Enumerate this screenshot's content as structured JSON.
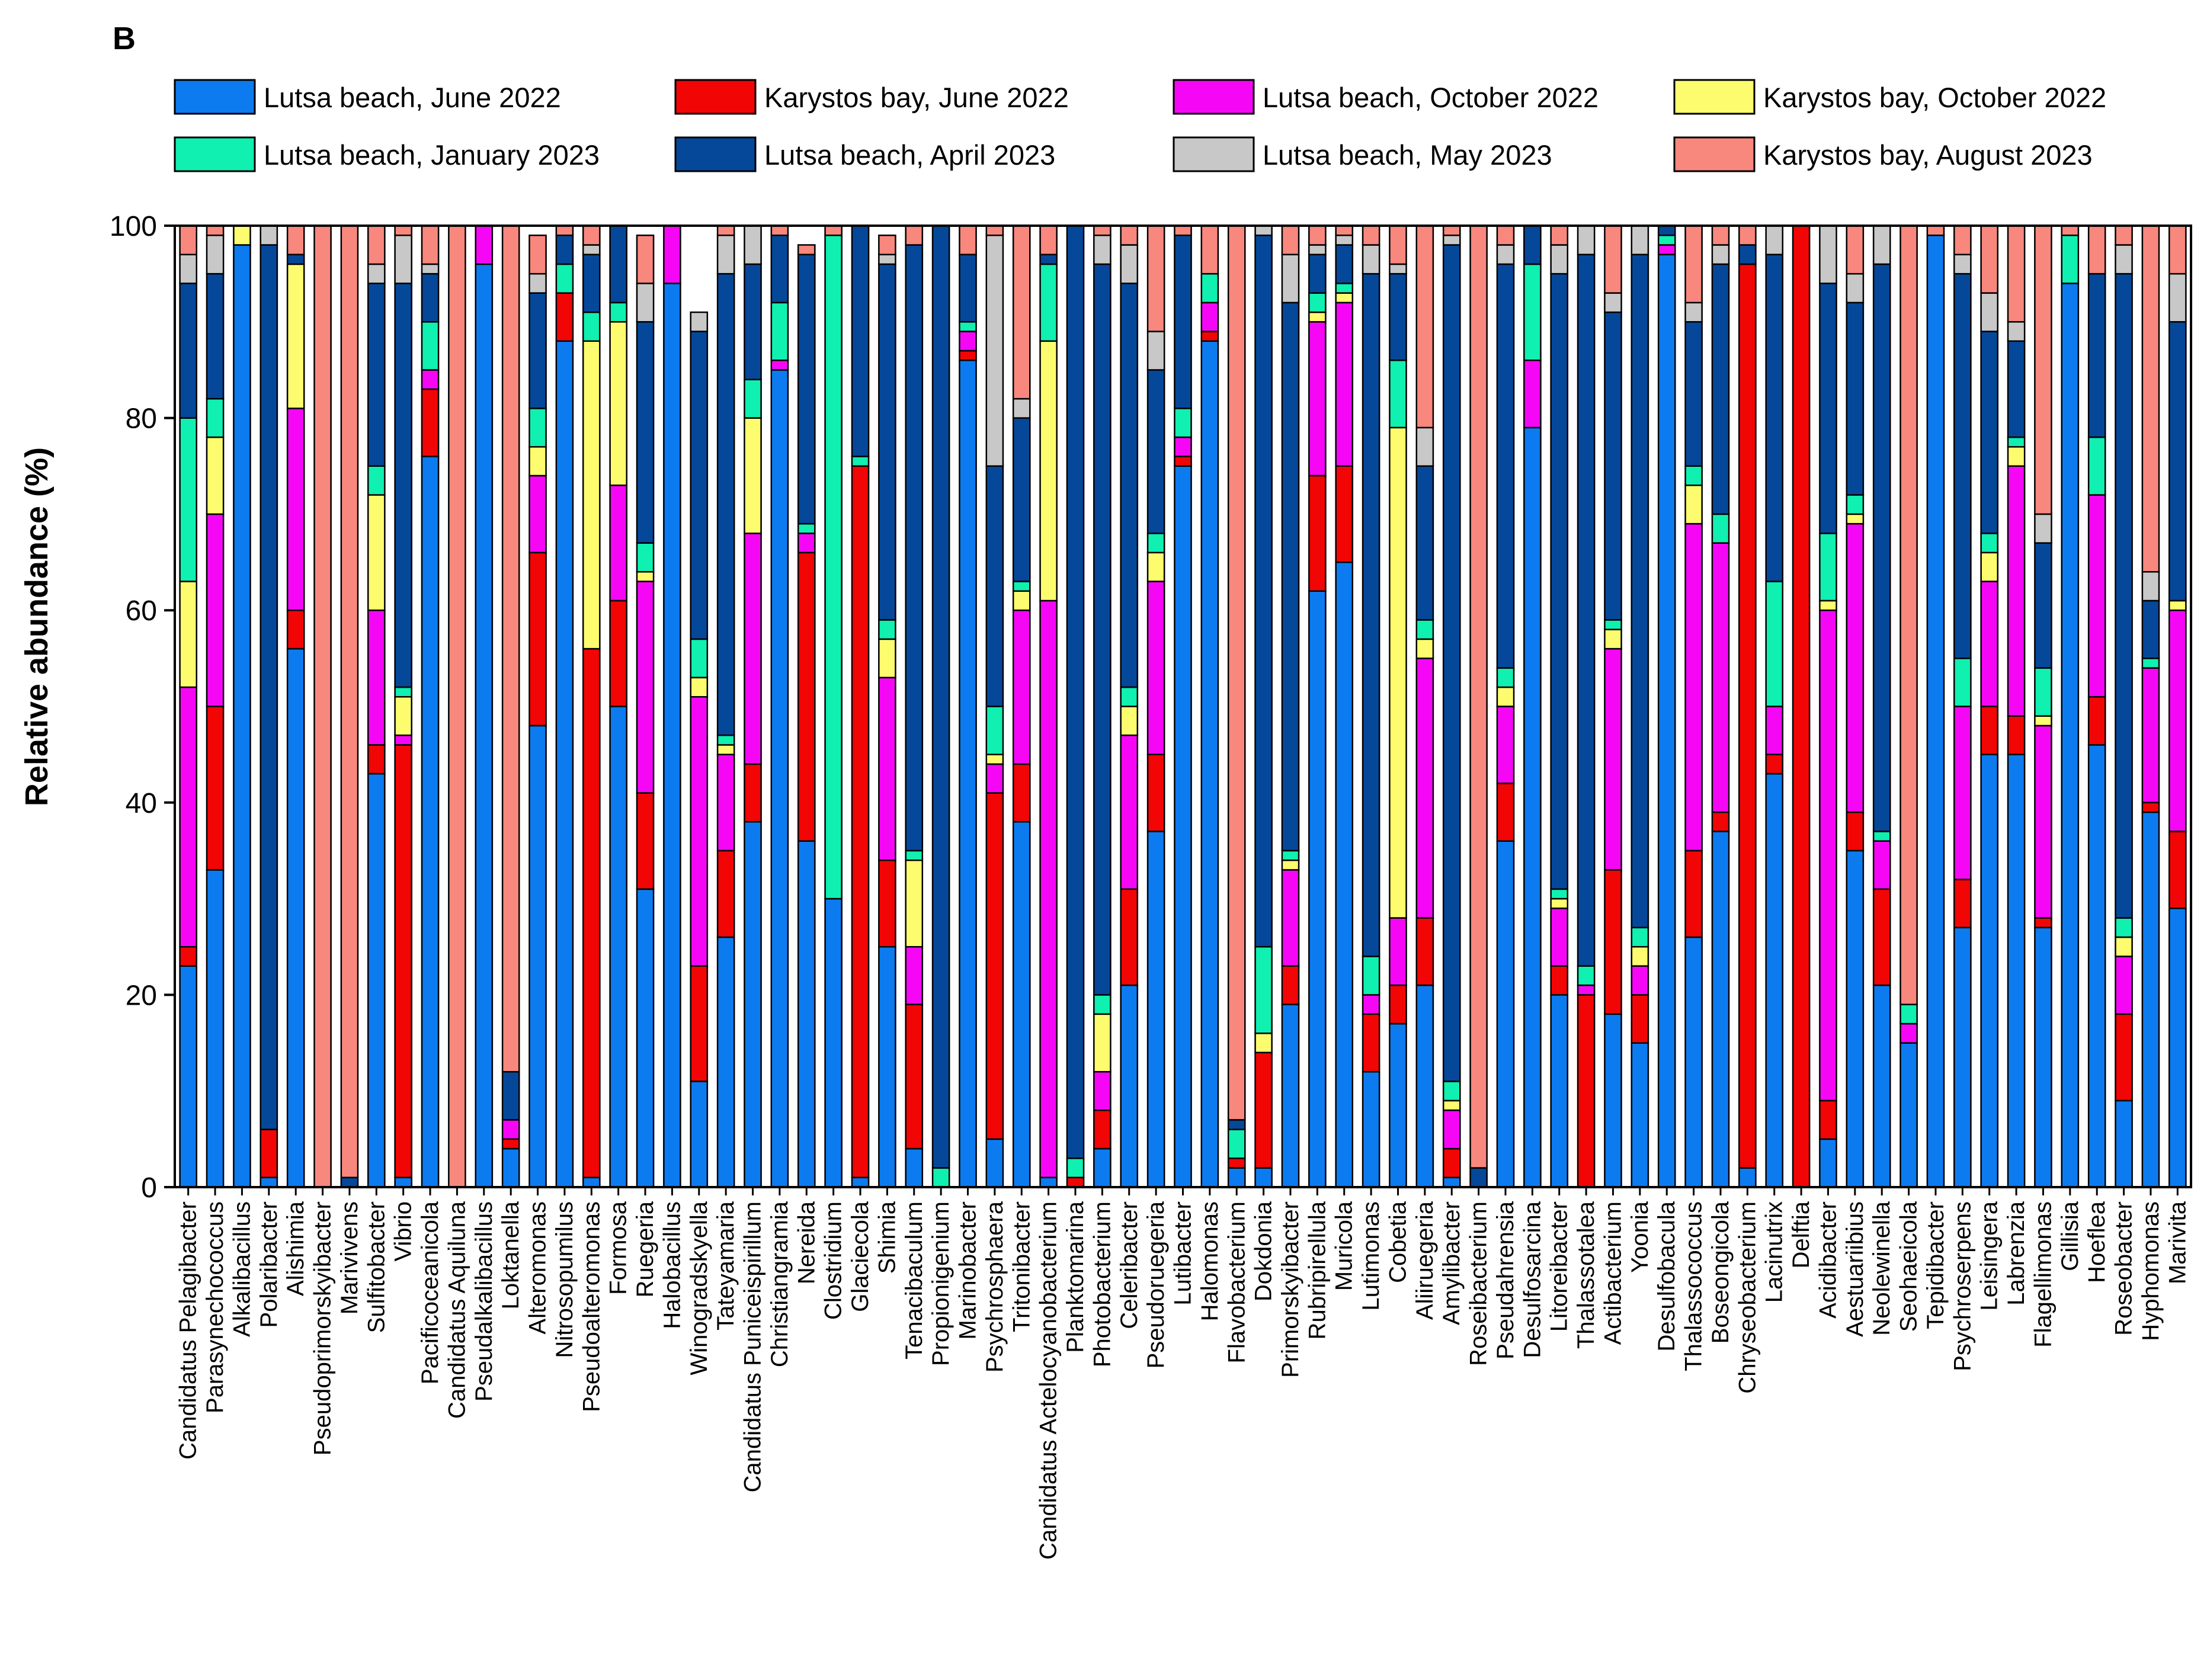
{
  "panel_label": "B",
  "chart_data": {
    "type": "bar",
    "stacked": true,
    "ylabel": "Relative abundance (%)",
    "ylim": [
      0,
      100
    ],
    "yticks": [
      0,
      20,
      40,
      60,
      80,
      100
    ],
    "legend_position": "top",
    "categories": [
      "Candidatus Pelagibacter",
      "Parasynechococcus",
      "Alkalibacillus",
      "Polaribacter",
      "Alishimia",
      "Pseudoprimorskyibacter",
      "Marivivens",
      "Sulfitobacter",
      "Vibrio",
      "Pacificoceanicola",
      "Candidatus Aquiluna",
      "Pseudalkalibacillus",
      "Loktanella",
      "Alteromonas",
      "Nitrosopumilus",
      "Pseudoalteromonas",
      "Formosa",
      "Ruegeria",
      "Halobacillus",
      "Winogradskyella",
      "Tateyamaria",
      "Candidatus Puniceispirillum",
      "Christiangramia",
      "Nereida",
      "Clostridium",
      "Glaciecola",
      "Shimia",
      "Tenacibaculum",
      "Propionigenium",
      "Marinobacter",
      "Psychrosphaera",
      "Tritonibacter",
      "Candidatus Actelocyanobacterium",
      "Planktomarina",
      "Photobacterium",
      "Celeribacter",
      "Pseudoruegeria",
      "Lutibacter",
      "Halomonas",
      "Flavobacterium",
      "Dokdonia",
      "Primorskyibacter",
      "Rubripirellula",
      "Muricola",
      "Lutimonas",
      "Cobetia",
      "Aliiruegeria",
      "Amylibacter",
      "Roseibacterium",
      "Pseudahrensia",
      "Desulfosarcina",
      "Litoreibacter",
      "Thalassotalea",
      "Actibacterium",
      "Yoonia",
      "Desulfobacula",
      "Thalassococcus",
      "Boseongicola",
      "Chryseobacterium",
      "Lacinutrix",
      "Delftia",
      "Acidibacter",
      "Aestuariibius",
      "Neolewinella",
      "Seohaeicola",
      "Tepidibacter",
      "Psychroserpens",
      "Leisingera",
      "Labrenzia",
      "Flagellimonas",
      "Gillisia",
      "Hoeflea",
      "Roseobacter",
      "Hyphomonas",
      "Marivita"
    ],
    "series": [
      {
        "name": "Lutsa beach, June 2022",
        "color": "#0c7bf0",
        "values": [
          23,
          33,
          98,
          1,
          56,
          0,
          0,
          43,
          1,
          76,
          0,
          96,
          4,
          48,
          88,
          1,
          50,
          31,
          94,
          11,
          26,
          38,
          85,
          36,
          30,
          1,
          25,
          4,
          0,
          86,
          5,
          38,
          1,
          0,
          4,
          21,
          37,
          75,
          88,
          2,
          2,
          19,
          62,
          65,
          12,
          17,
          21,
          1,
          0,
          36,
          79,
          20,
          0,
          18,
          15,
          97,
          26,
          37,
          2,
          43,
          0,
          5,
          35,
          21,
          15,
          99,
          27,
          45,
          45,
          27,
          94,
          46,
          9,
          39,
          29
        ]
      },
      {
        "name": "Karystos bay, June 2022",
        "color": "#f20505",
        "values": [
          2,
          17,
          0,
          5,
          4,
          0,
          0,
          3,
          45,
          7,
          0,
          0,
          1,
          18,
          5,
          55,
          11,
          10,
          0,
          12,
          9,
          6,
          0,
          30,
          0,
          74,
          9,
          15,
          0,
          1,
          36,
          6,
          0,
          1,
          4,
          10,
          8,
          1,
          1,
          1,
          12,
          4,
          12,
          10,
          6,
          4,
          7,
          3,
          0,
          6,
          0,
          3,
          20,
          15,
          5,
          0,
          9,
          2,
          94,
          2,
          100,
          4,
          4,
          10,
          0,
          0,
          5,
          5,
          4,
          1,
          0,
          5,
          9,
          1,
          8
        ]
      },
      {
        "name": "Lutsa beach, October 2022",
        "color": "#f507f5",
        "values": [
          27,
          20,
          0,
          0,
          21,
          0,
          0,
          14,
          1,
          2,
          0,
          4,
          2,
          8,
          0,
          0,
          12,
          22,
          6,
          28,
          10,
          24,
          1,
          2,
          0,
          0,
          19,
          6,
          0,
          2,
          3,
          16,
          60,
          0,
          4,
          16,
          18,
          2,
          3,
          0,
          0,
          10,
          16,
          17,
          2,
          7,
          27,
          4,
          0,
          8,
          7,
          6,
          1,
          23,
          3,
          1,
          34,
          28,
          0,
          5,
          0,
          51,
          30,
          5,
          2,
          0,
          18,
          13,
          26,
          20,
          0,
          21,
          6,
          14,
          23
        ]
      },
      {
        "name": "Karystos bay, October 2022",
        "color": "#fdfc6e",
        "values": [
          11,
          8,
          2,
          0,
          15,
          0,
          0,
          12,
          4,
          0,
          0,
          0,
          0,
          3,
          0,
          32,
          17,
          1,
          0,
          2,
          1,
          12,
          0,
          0,
          0,
          0,
          4,
          9,
          0,
          0,
          1,
          2,
          27,
          0,
          6,
          3,
          3,
          0,
          0,
          0,
          2,
          1,
          1,
          1,
          0,
          51,
          2,
          1,
          0,
          2,
          0,
          1,
          0,
          2,
          2,
          0,
          4,
          0,
          0,
          0,
          0,
          1,
          1,
          0,
          0,
          0,
          0,
          3,
          2,
          1,
          0,
          0,
          2,
          0,
          1
        ]
      },
      {
        "name": "Lutsa beach, January 2023",
        "color": "#10f0b0",
        "values": [
          17,
          4,
          0,
          0,
          0,
          0,
          0,
          3,
          1,
          5,
          0,
          0,
          0,
          4,
          3,
          3,
          2,
          3,
          0,
          4,
          1,
          4,
          6,
          1,
          69,
          1,
          2,
          1,
          2,
          1,
          5,
          1,
          8,
          2,
          2,
          2,
          2,
          3,
          3,
          3,
          9,
          1,
          2,
          1,
          4,
          7,
          2,
          2,
          0,
          2,
          10,
          1,
          2,
          1,
          2,
          1,
          2,
          3,
          0,
          13,
          0,
          7,
          2,
          1,
          2,
          0,
          5,
          2,
          1,
          5,
          5,
          6,
          2,
          1,
          0
        ]
      },
      {
        "name": "Lutsa beach, April 2023",
        "color": "#05489a",
        "values": [
          14,
          13,
          1,
          92,
          1,
          0,
          1,
          19,
          42,
          5,
          0,
          0,
          5,
          12,
          3,
          6,
          8,
          23,
          0,
          32,
          48,
          12,
          7,
          28,
          0,
          24,
          37,
          63,
          98,
          7,
          25,
          17,
          1,
          97,
          76,
          42,
          17,
          18,
          0,
          1,
          74,
          57,
          4,
          4,
          71,
          9,
          16,
          87,
          2,
          42,
          4,
          64,
          74,
          32,
          70,
          1,
          15,
          26,
          2,
          34,
          0,
          26,
          20,
          59,
          0,
          0,
          40,
          21,
          10,
          13,
          0,
          17,
          67,
          6,
          29
        ]
      },
      {
        "name": "Lutsa beach, May 2023",
        "color": "#c8c8c8",
        "values": [
          3,
          4,
          0,
          2,
          0,
          0,
          0,
          2,
          5,
          1,
          0,
          0,
          0,
          2,
          0,
          1,
          1,
          4,
          0,
          2,
          4,
          4,
          0,
          0,
          0,
          0,
          1,
          0,
          0,
          0,
          24,
          2,
          0,
          0,
          3,
          4,
          4,
          0,
          0,
          0,
          1,
          5,
          1,
          1,
          3,
          1,
          4,
          1,
          0,
          2,
          0,
          3,
          3,
          2,
          3,
          0,
          2,
          2,
          0,
          4,
          0,
          6,
          3,
          5,
          0,
          0,
          2,
          4,
          2,
          3,
          0,
          0,
          3,
          3,
          5
        ]
      },
      {
        "name": "Karystos bay, August 2023",
        "color": "#f8877d",
        "values": [
          3,
          1,
          0,
          0,
          3,
          100,
          99,
          4,
          1,
          4,
          100,
          0,
          88,
          4,
          1,
          2,
          1,
          5,
          0,
          0,
          1,
          0,
          1,
          1,
          1,
          0,
          2,
          2,
          0,
          3,
          1,
          18,
          3,
          0,
          1,
          2,
          11,
          1,
          5,
          93,
          0,
          3,
          2,
          2,
          2,
          4,
          21,
          1,
          98,
          2,
          0,
          2,
          0,
          7,
          0,
          0,
          8,
          2,
          2,
          0,
          0,
          0,
          5,
          0,
          81,
          1,
          3,
          8,
          10,
          30,
          1,
          5,
          4,
          36,
          5
        ]
      }
    ]
  }
}
